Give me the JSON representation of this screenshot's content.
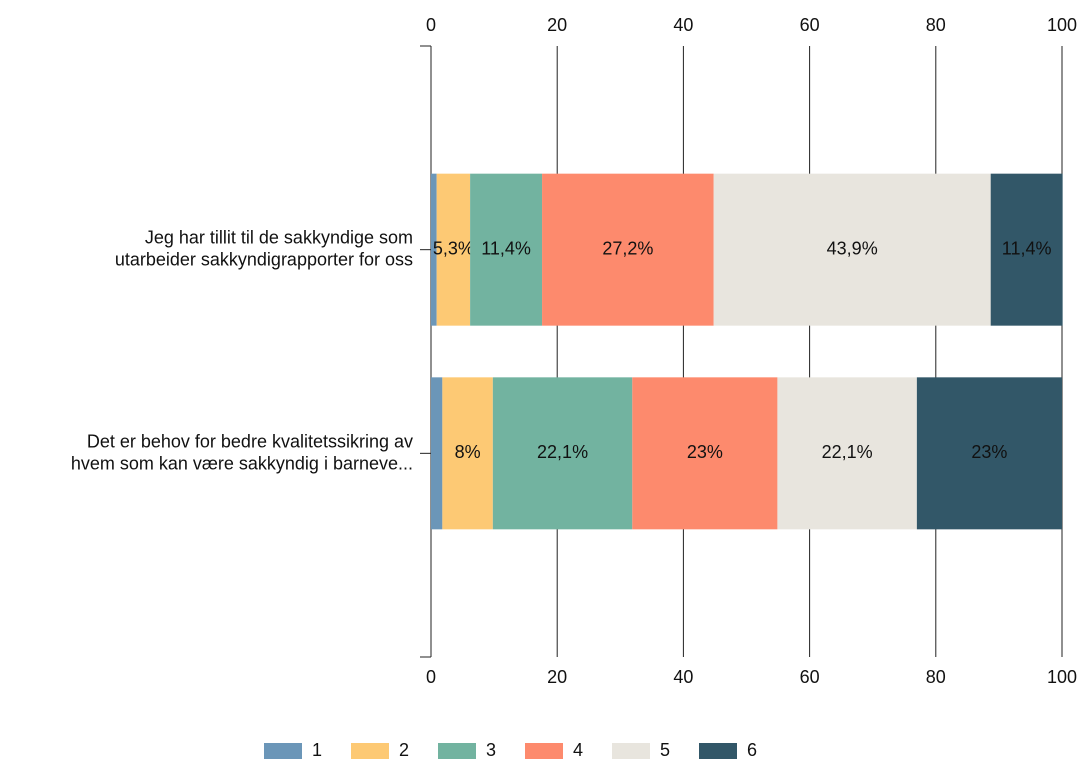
{
  "chart_data": {
    "type": "stacked-bar-horizontal",
    "categories": [
      "Jeg har tillit til de sakkyndige som\nutarbeider sakkyndigrapporter for oss",
      "Det er behov for bedre kvalitetssikring av\nhvem som kan være sakkyndig i barneve..."
    ],
    "series": [
      {
        "name": "1",
        "color": "#6b96b8",
        "values": [
          0.9,
          1.8
        ]
      },
      {
        "name": "2",
        "color": "#fdc974",
        "values": [
          5.3,
          8
        ],
        "value_labels": [
          "5,3%",
          "8%"
        ]
      },
      {
        "name": "3",
        "color": "#72b3a0",
        "values": [
          11.4,
          22.1
        ],
        "value_labels": [
          "11,4%",
          "22,1%"
        ]
      },
      {
        "name": "4",
        "color": "#fd8a6d",
        "values": [
          27.2,
          23
        ],
        "value_labels": [
          "27,2%",
          "23%"
        ]
      },
      {
        "name": "5",
        "color": "#e8e5de",
        "values": [
          43.9,
          22.1
        ],
        "value_labels": [
          "43,9%",
          "22,1%"
        ]
      },
      {
        "name": "6",
        "color": "#325768",
        "values": [
          11.4,
          23
        ],
        "value_labels": [
          "11,4%",
          "23%"
        ]
      }
    ],
    "xlim": [
      0,
      100
    ],
    "xticks": [
      0,
      20,
      40,
      60,
      80,
      100
    ],
    "grid": true,
    "legend": "bottom"
  }
}
